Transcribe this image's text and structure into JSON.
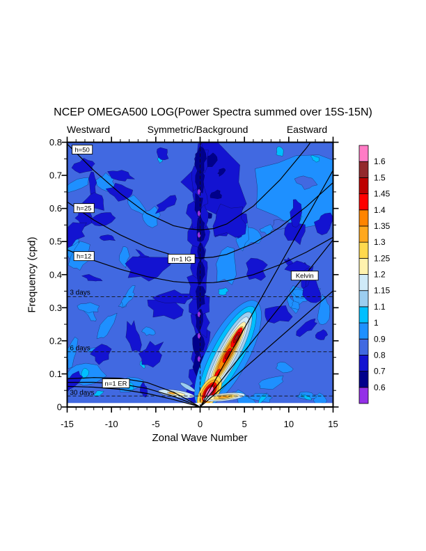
{
  "chart_data": {
    "type": "heatmap",
    "title": "NCEP OMEGA500 LOG(Power Spectra summed over 15S-15N)",
    "column_headers": {
      "west": "Westward",
      "center": "Symmetric/Background",
      "east": "Eastward"
    },
    "xlabel": "Zonal Wave Number",
    "ylabel": "Frequency (cpd)",
    "xlim": [
      -15,
      15
    ],
    "ylim": [
      0,
      0.8
    ],
    "x_major_ticks": [
      -15,
      -10,
      -5,
      0,
      5,
      10,
      15
    ],
    "x_tick_labels": [
      "-15",
      "-10",
      "-5",
      "0",
      "5",
      "10",
      "15"
    ],
    "x_minor_step": 1,
    "y_major_ticks": [
      0,
      0.1,
      0.2,
      0.3,
      0.4,
      0.5,
      0.6,
      0.7,
      0.8
    ],
    "y_tick_labels": [
      "0",
      "0.1",
      "0.2",
      "0.3",
      "0.4",
      "0.5",
      "0.6",
      "0.7",
      "0.8"
    ],
    "y_minor_step": 0.05,
    "grid": false,
    "legend_position": "right-colorbar",
    "colorbar": {
      "boundary_labels_bottom_to_top": [
        "0.6",
        "0.7",
        "0.8",
        "0.9",
        "1",
        "1.1",
        "1.15",
        "1.2",
        "1.25",
        "1.3",
        "1.35",
        "1.4",
        "1.45",
        "1.5",
        "1.6"
      ],
      "colors_bottom_to_top": [
        "#9430E8",
        "#00008B",
        "#1313D1",
        "#4169E1",
        "#1E90FF",
        "#00BFFF",
        "#9CCEF0",
        "#CFEAF8",
        "#FFF2AE",
        "#FFD94E",
        "#FFA81E",
        "#FF8400",
        "#FF0000",
        "#BD0000",
        "#93282C",
        "#FF7BC5"
      ]
    },
    "dashed_period_lines": [
      {
        "label": "3 days",
        "frequency_cpd": 0.3333
      },
      {
        "label": "6 days",
        "frequency_cpd": 0.1667
      },
      {
        "label": "30 days",
        "frequency_cpd": 0.0333
      }
    ],
    "zero_wavenumber_dashed_line": 0,
    "dispersion_curves": {
      "kelvin": [
        {
          "name": "Kelvin h=50",
          "points": [
            [
              0,
              0
            ],
            [
              15,
              0.7155
            ]
          ]
        },
        {
          "name": "Kelvin h=25",
          "points": [
            [
              0,
              0
            ],
            [
              15,
              0.5055
            ]
          ]
        },
        {
          "name": "Kelvin h=12",
          "points": [
            [
              0,
              0
            ],
            [
              15,
              0.351
            ]
          ]
        }
      ],
      "n1_ig": [
        {
          "name": "n=1 IG h=50",
          "points": [
            [
              -15,
              0.795
            ],
            [
              -12,
              0.715
            ],
            [
              -9,
              0.645
            ],
            [
              -6,
              0.585
            ],
            [
              -3,
              0.548
            ],
            [
              -1.5,
              0.539
            ],
            [
              0,
              0.535
            ],
            [
              1.5,
              0.539
            ],
            [
              3,
              0.553
            ],
            [
              6,
              0.607
            ],
            [
              9,
              0.686
            ],
            [
              12,
              0.783
            ],
            [
              15,
              0.893
            ]
          ]
        },
        {
          "name": "n=1 IG h=25",
          "points": [
            [
              -15,
              0.62
            ],
            [
              -12,
              0.565
            ],
            [
              -9,
              0.52
            ],
            [
              -6,
              0.483
            ],
            [
              -3,
              0.458
            ],
            [
              -1.5,
              0.453
            ],
            [
              0,
              0.45
            ],
            [
              1.5,
              0.453
            ],
            [
              3,
              0.461
            ],
            [
              6,
              0.494
            ],
            [
              9,
              0.543
            ],
            [
              12,
              0.606
            ],
            [
              15,
              0.678
            ]
          ]
        },
        {
          "name": "n=1 IG h=12",
          "points": [
            [
              -15,
              0.475
            ],
            [
              -12,
              0.443
            ],
            [
              -9,
              0.416
            ],
            [
              -6,
              0.394
            ],
            [
              -3,
              0.379
            ],
            [
              -1.5,
              0.376
            ],
            [
              0,
              0.375
            ],
            [
              1.5,
              0.376
            ],
            [
              3,
              0.381
            ],
            [
              6,
              0.4
            ],
            [
              9,
              0.43
            ],
            [
              12,
              0.468
            ],
            [
              15,
              0.513
            ]
          ]
        }
      ],
      "n1_er": [
        {
          "name": "n=1 ER h=50",
          "points": [
            [
              -15,
              0.0854
            ],
            [
              -12,
              0.0889
            ],
            [
              -9,
              0.087
            ],
            [
              -6,
              0.0742
            ],
            [
              -3,
              0.0445
            ],
            [
              -1.5,
              0.0234
            ],
            [
              0,
              0
            ]
          ]
        },
        {
          "name": "n=1 ER h=25",
          "points": [
            [
              -15,
              0.0745
            ],
            [
              -12,
              0.0746
            ],
            [
              -9,
              0.0696
            ],
            [
              -6,
              0.0562
            ],
            [
              -3,
              0.0322
            ],
            [
              -1.5,
              0.0167
            ],
            [
              0,
              0
            ]
          ]
        },
        {
          "name": "n=1 ER h=12",
          "points": [
            [
              -15,
              0.0623
            ],
            [
              -12,
              0.0599
            ],
            [
              -9,
              0.0534
            ],
            [
              -6,
              0.0411
            ],
            [
              -3,
              0.0226
            ],
            [
              -1.5,
              0.0116
            ],
            [
              0,
              0
            ]
          ]
        }
      ]
    },
    "annotations": [
      {
        "text": "h=50",
        "k": -13.3,
        "f": 0.778,
        "boxed": true
      },
      {
        "text": "h=25",
        "k": -13.1,
        "f": 0.601,
        "boxed": true
      },
      {
        "text": "h=12",
        "k": -13.1,
        "f": 0.456,
        "boxed": true
      },
      {
        "text": "n=1 IG",
        "k": -2.1,
        "f": 0.448,
        "boxed": true
      },
      {
        "text": "Kelvin",
        "k": 11.8,
        "f": 0.397,
        "boxed": true
      },
      {
        "text": "n=1 ER",
        "k": -9.5,
        "f": 0.0715,
        "boxed": true
      },
      {
        "text": "3 days",
        "k": -14.7,
        "f": 0.347,
        "boxed": false
      },
      {
        "text": "6 days",
        "k": -14.7,
        "f": 0.179,
        "boxed": false
      },
      {
        "text": "30 days",
        "k": -14.7,
        "f": 0.0442,
        "boxed": false
      }
    ],
    "features": {
      "background_field": "blue field ~0.8-1.0 with scattered darker (0.6-0.8) and lighter (0.9-1.1) patches",
      "zero_wavenumber_column": "dark column 0.6-0.8 at k=0 over all frequencies with small spots below 0.6",
      "kelvin_band_maximum": {
        "k_range": [
          0.55,
          5.7
        ],
        "f_range": [
          0.03,
          0.29
        ],
        "peak_value": "1.45-1.6"
      },
      "origin_maximum": {
        "k": 1.05,
        "f": 0.045,
        "peak_value": ">1.6"
      },
      "low_frequency_streaks": "values ~1.2-1.35 along f=0.03 for k=1..4 and k=-4..-2",
      "top_right_light_region": "values 0.9-1.1 for k>6, f>0.45"
    }
  }
}
